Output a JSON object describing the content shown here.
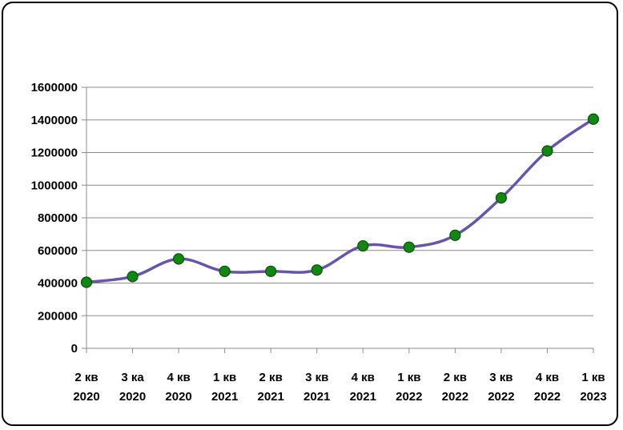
{
  "chart_data": {
    "type": "line",
    "title": "",
    "xlabel": "",
    "ylabel": "",
    "smooth": true,
    "grid": true,
    "ylim": [
      0,
      1600000
    ],
    "yticks": [
      "0",
      "200000",
      "400000",
      "600000",
      "800000",
      "1000000",
      "1200000",
      "1400000",
      "1600000"
    ],
    "categories": [
      [
        "2 кв",
        "2020"
      ],
      [
        "3 ка",
        "2020"
      ],
      [
        "4 кв",
        "2020"
      ],
      [
        "1 кв",
        "2021"
      ],
      [
        "2 кв",
        "2021"
      ],
      [
        "3 кв",
        "2021"
      ],
      [
        "4 кв",
        "2021"
      ],
      [
        "1 кв",
        "2022"
      ],
      [
        "2 кв",
        "2022"
      ],
      [
        "3 кв",
        "2022"
      ],
      [
        "4 кв",
        "2022"
      ],
      [
        "1 кв",
        "2023"
      ]
    ],
    "series": [
      {
        "values": [
          405000,
          440000,
          548000,
          472000,
          472000,
          480000,
          628000,
          620000,
          693000,
          922000,
          1210000,
          1405000
        ],
        "line_color": "#6655aa",
        "marker_color": "#118811",
        "marker_edge": "#0a4f0a"
      }
    ]
  }
}
